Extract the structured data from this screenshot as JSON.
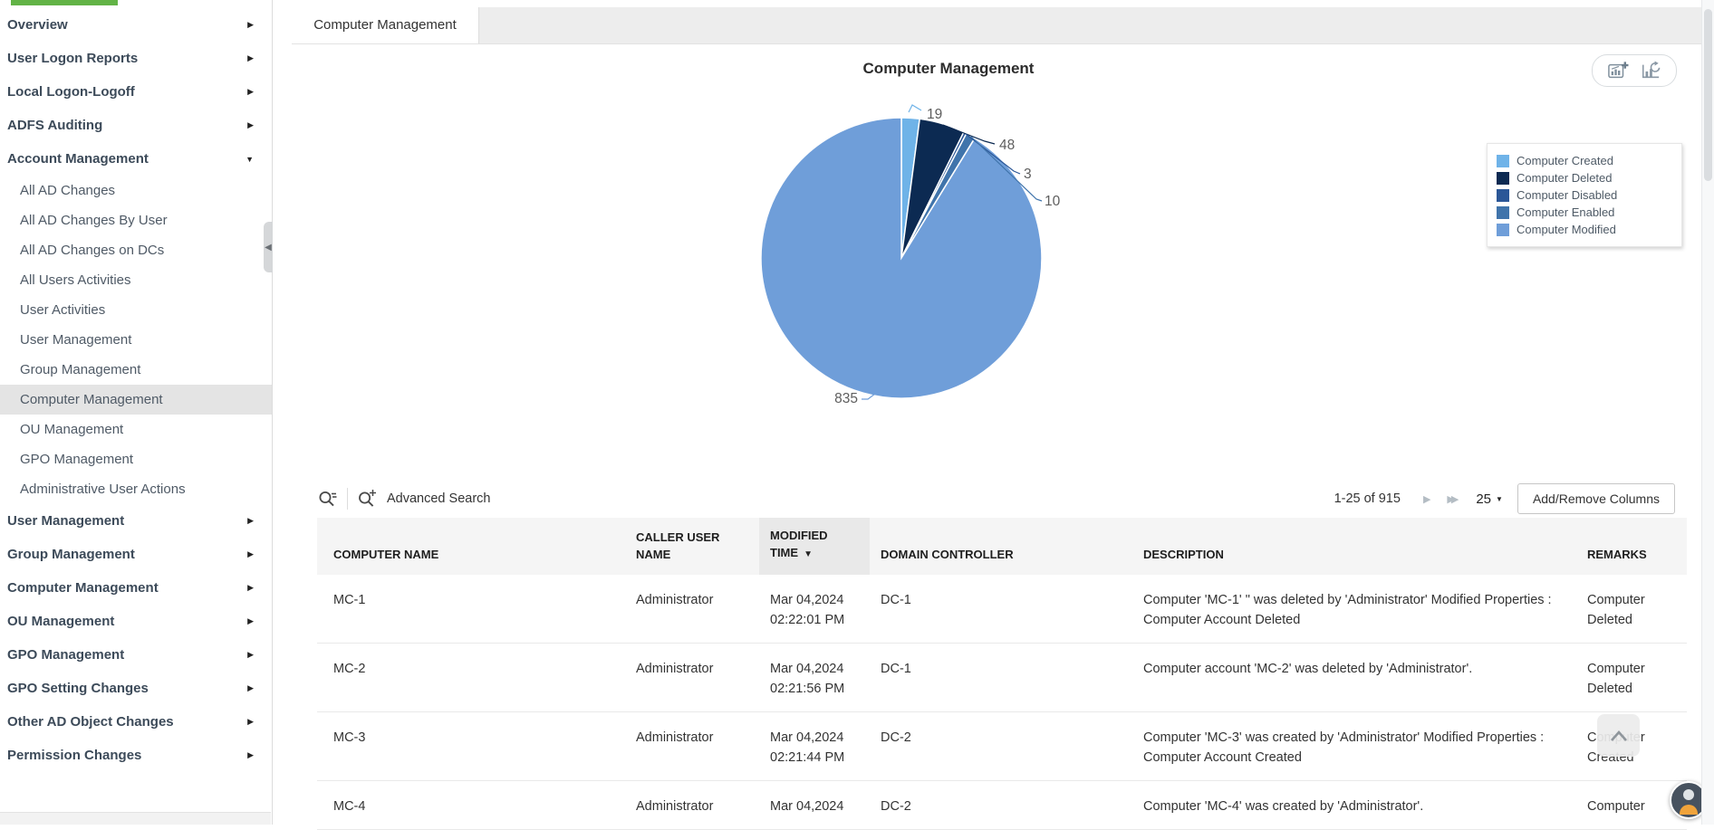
{
  "colors": {
    "accent_green": "#62b346",
    "sidebar_selected_bg": "#e4e4e4",
    "header_bg": "#f5f5f5",
    "sorted_header_bg": "#e9e9e9"
  },
  "sidebar": {
    "items": [
      {
        "label": "Overview",
        "arrow": "right"
      },
      {
        "label": "User Logon Reports",
        "arrow": "right"
      },
      {
        "label": "Local Logon-Logoff",
        "arrow": "right"
      },
      {
        "label": "ADFS Auditing",
        "arrow": "right"
      },
      {
        "label": "Account Management",
        "arrow": "down",
        "expanded": true,
        "children": [
          {
            "label": "All AD Changes"
          },
          {
            "label": "All AD Changes By User"
          },
          {
            "label": "All AD Changes on DCs"
          },
          {
            "label": "All Users Activities"
          },
          {
            "label": "User Activities"
          },
          {
            "label": "User Management"
          },
          {
            "label": "Group Management"
          },
          {
            "label": "Computer Management",
            "selected": true
          },
          {
            "label": "OU Management"
          },
          {
            "label": "GPO Management"
          },
          {
            "label": "Administrative User Actions"
          }
        ]
      },
      {
        "label": "User Management",
        "arrow": "right"
      },
      {
        "label": "Group Management",
        "arrow": "right"
      },
      {
        "label": "Computer Management",
        "arrow": "right"
      },
      {
        "label": "OU Management",
        "arrow": "right"
      },
      {
        "label": "GPO Management",
        "arrow": "right"
      },
      {
        "label": "GPO Setting Changes",
        "arrow": "right"
      },
      {
        "label": "Other AD Object Changes",
        "arrow": "right"
      },
      {
        "label": "Permission Changes",
        "arrow": "right"
      }
    ]
  },
  "tab_bar": {
    "active_tab": "Computer Management"
  },
  "chart_data": {
    "type": "pie",
    "title": "Computer Management",
    "labels": [
      "Computer Created",
      "Computer Deleted",
      "Computer Disabled",
      "Computer Enabled",
      "Computer Modified"
    ],
    "values": [
      19,
      48,
      3,
      10,
      835
    ],
    "colors": [
      "#6fb3e8",
      "#0c2a52",
      "#2b5797",
      "#4074ab",
      "#6f9ed9"
    ],
    "total": 915,
    "legend_position": "right",
    "data_labels": true
  },
  "toolbar": {
    "advanced_search_label": "Advanced Search",
    "pagination_text": "1-25 of 915",
    "page_size": "25",
    "add_remove_columns_label": "Add/Remove Columns"
  },
  "table": {
    "columns": [
      {
        "label": "COMPUTER NAME"
      },
      {
        "label": "CALLER USER NAME"
      },
      {
        "label": "MODIFIED TIME",
        "sorted": "desc"
      },
      {
        "label": "DOMAIN CONTROLLER"
      },
      {
        "label": "DESCRIPTION"
      },
      {
        "label": "REMARKS"
      }
    ],
    "rows": [
      {
        "computer_name": "MC-1",
        "caller_user_name": "Administrator",
        "modified_time": [
          "Mar 04,2024",
          "02:22:01 PM"
        ],
        "domain_controller": "DC-1",
        "description": "Computer 'MC-1' \" was deleted by 'Administrator' Modified Properties : Computer Account Deleted",
        "remarks": "Computer Deleted"
      },
      {
        "computer_name": "MC-2",
        "caller_user_name": "Administrator",
        "modified_time": [
          "Mar 04,2024",
          "02:21:56 PM"
        ],
        "domain_controller": "DC-1",
        "description": "Computer account 'MC-2' was deleted by 'Administrator'.",
        "remarks": "Computer Deleted"
      },
      {
        "computer_name": "MC-3",
        "caller_user_name": "Administrator",
        "modified_time": [
          "Mar 04,2024",
          "02:21:44 PM"
        ],
        "domain_controller": "DC-2",
        "description": "Computer 'MC-3' was created by 'Administrator' Modified Properties : Computer Account Created",
        "remarks": "Computer Created"
      },
      {
        "computer_name": "MC-4",
        "caller_user_name": "Administrator",
        "modified_time": [
          "Mar 04,2024",
          ""
        ],
        "domain_controller": "DC-2",
        "description": "Computer 'MC-4' was created by 'Administrator'.",
        "remarks": "Computer"
      }
    ]
  }
}
